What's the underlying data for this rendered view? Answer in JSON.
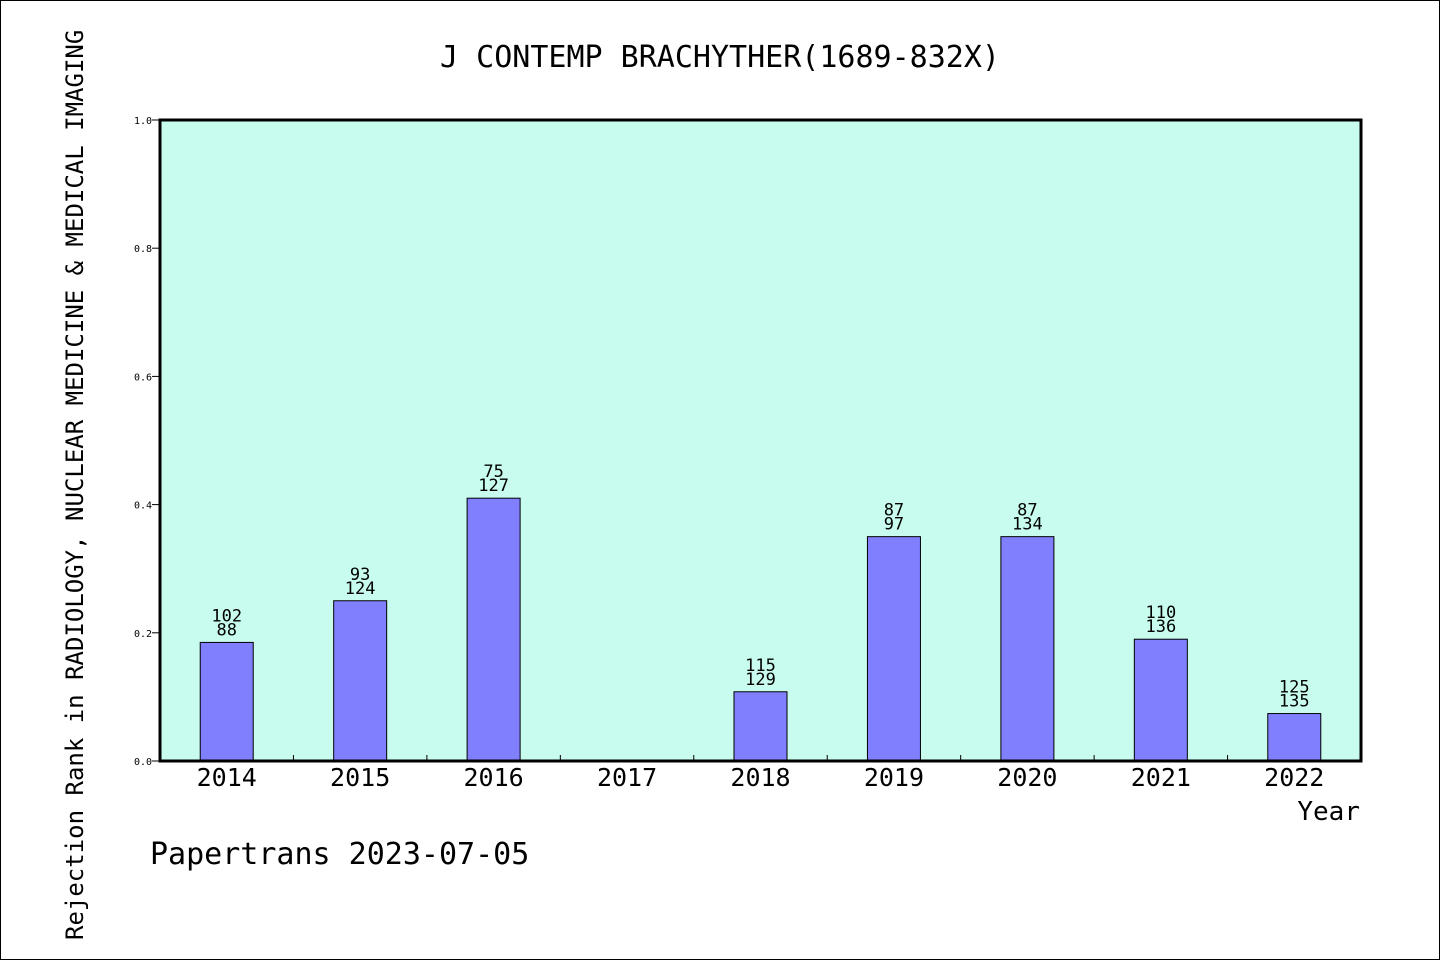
{
  "chart_data": {
    "type": "bar",
    "title": "J CONTEMP BRACHYTHER(1689-832X)",
    "xlabel": "Year",
    "ylabel": "Rejection Rank in RADIOLOGY, NUCLEAR MEDICINE & MEDICAL IMAGING",
    "categories": [
      "2014",
      "2015",
      "2016",
      "2017",
      "2018",
      "2019",
      "2020",
      "2021",
      "2022"
    ],
    "values": [
      0.185,
      0.25,
      0.41,
      null,
      0.108,
      0.35,
      0.35,
      0.19,
      0.074
    ],
    "bar_labels": [
      [
        "102",
        "88"
      ],
      [
        "93",
        "124"
      ],
      [
        "75",
        "127"
      ],
      null,
      [
        "115",
        "129"
      ],
      [
        "87",
        "97"
      ],
      [
        "87",
        "134"
      ],
      [
        "110",
        "136"
      ],
      [
        "125",
        "135"
      ]
    ],
    "ylim": [
      0,
      1.0
    ],
    "yticks": [
      "0.0",
      "0.2",
      "0.4",
      "0.6",
      "0.8",
      "1.0"
    ],
    "grid": false,
    "colors": {
      "plot_background": "#c8fcee",
      "bar_fill": "#8080ff",
      "bar_stroke": "#000000"
    }
  },
  "footer": "Papertrans 2023-07-05"
}
